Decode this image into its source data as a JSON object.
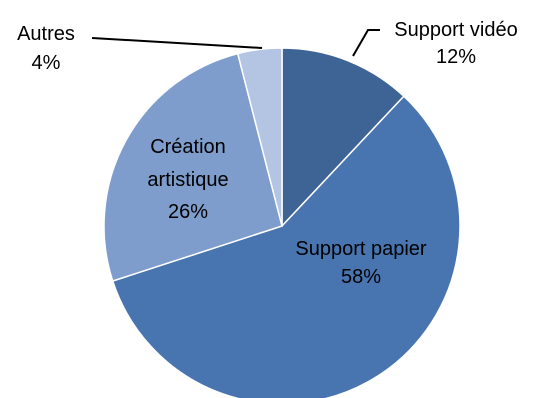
{
  "chart_data": {
    "type": "pie",
    "title": "",
    "slices": [
      {
        "name": "Support vidéo",
        "label": "Support vidéo",
        "percent_label": "12%",
        "value": 12,
        "color": "#3e6496"
      },
      {
        "name": "Support papier",
        "label": "Support papier",
        "percent_label": "58%",
        "value": 58,
        "color": "#4874b0"
      },
      {
        "name": "Création artistique",
        "label": "Création artistique",
        "label_lines": [
          "Création",
          "artistique"
        ],
        "percent_label": "26%",
        "value": 26,
        "color": "#7e9dcc"
      },
      {
        "name": "Autres",
        "label": "Autres",
        "percent_label": "4%",
        "value": 4,
        "color": "#b3c5e2"
      }
    ],
    "start_angle_deg": 0,
    "direction": "clockwise",
    "legend": "none"
  }
}
